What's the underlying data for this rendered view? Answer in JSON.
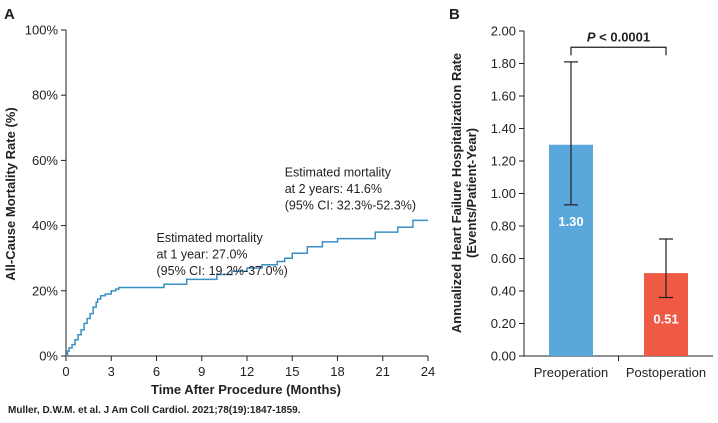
{
  "panel_a_letter": "A",
  "panel_b_letter": "B",
  "citation": "Muller, D.W.M. et al. J Am Coll Cardiol. 2021;78(19):1847-1859.",
  "chart_data": [
    {
      "type": "line",
      "panel": "A",
      "xlabel": "Time After Procedure (Months)",
      "ylabel": "All-Cause Mortality Rate (%)",
      "xlim": [
        0,
        24
      ],
      "ylim": [
        0,
        100
      ],
      "xticks": [
        0,
        3,
        6,
        9,
        12,
        15,
        18,
        21,
        24
      ],
      "xtick_labels": [
        "0",
        "3",
        "6",
        "9",
        "12",
        "15",
        "18",
        "21",
        "24"
      ],
      "yticks": [
        0,
        20,
        40,
        60,
        80,
        100
      ],
      "ytick_labels": [
        "0%",
        "20%",
        "40%",
        "60%",
        "80%",
        "100%"
      ],
      "grid": false,
      "line_color": "#3a8fc5",
      "series": [
        {
          "step": true,
          "x": [
            0,
            0.1,
            0.2,
            0.4,
            0.6,
            0.8,
            1.0,
            1.2,
            1.4,
            1.6,
            1.8,
            2.0,
            2.1,
            2.3,
            2.6,
            3.0,
            3.3,
            3.5,
            6.5,
            8.0,
            10.0,
            11.0,
            12.0,
            13.0,
            14.0,
            14.5,
            15.0,
            16.0,
            17.0,
            18.0,
            20.5,
            22.0,
            23.0,
            24.0
          ],
          "y": [
            0,
            1.5,
            2.5,
            3.5,
            5.0,
            6.5,
            8.0,
            10.0,
            11.5,
            13.0,
            15.0,
            16.5,
            17.5,
            18.5,
            19.0,
            20.0,
            20.5,
            21.0,
            22.0,
            23.5,
            25.0,
            26.0,
            27.0,
            28.0,
            29.0,
            30.0,
            31.5,
            33.5,
            35.0,
            36.0,
            38.0,
            39.5,
            41.6,
            41.6
          ]
        }
      ],
      "annotations": [
        {
          "x": 6,
          "y": 35,
          "lines": [
            "Estimated mortality",
            "at 1 year: 27.0%",
            "(95% CI: 19.2%-37.0%)"
          ]
        },
        {
          "x": 14.5,
          "y": 55,
          "lines": [
            "Estimated mortality",
            "at 2 years: 41.6%",
            "(95% CI: 32.3%-52.3%)"
          ]
        }
      ]
    },
    {
      "type": "bar",
      "panel": "B",
      "ylabel_lines": [
        "Annualized Heart Failure Hospitalization Rate",
        "(Events/Patient-Year)"
      ],
      "categories": [
        "Preoperation",
        "Postoperation"
      ],
      "values": [
        1.3,
        0.51
      ],
      "value_labels": [
        "1.30",
        "0.51"
      ],
      "error_low": [
        0.93,
        0.36
      ],
      "error_high": [
        1.81,
        0.72
      ],
      "colors": [
        "#5aa7dc",
        "#ef5a45"
      ],
      "ylim": [
        0,
        2.0
      ],
      "yticks": [
        0,
        0.2,
        0.4,
        0.6,
        0.8,
        1.0,
        1.2,
        1.4,
        1.6,
        1.8,
        2.0
      ],
      "ytick_labels": [
        "0.00",
        "0.20",
        "0.40",
        "0.60",
        "0.80",
        "1.00",
        "1.20",
        "1.40",
        "1.60",
        "1.80",
        "2.00"
      ],
      "significance_label": "P < 0.0001",
      "grid": false
    }
  ]
}
